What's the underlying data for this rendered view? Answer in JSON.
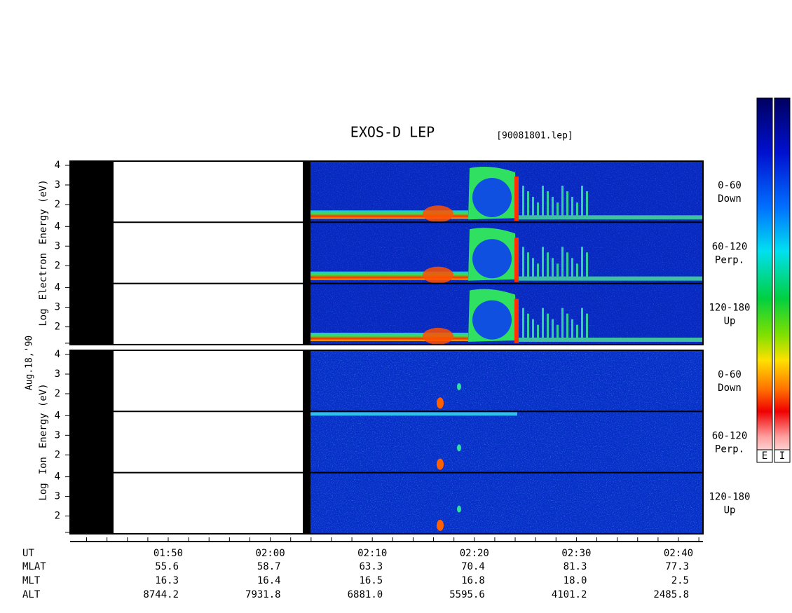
{
  "header": {
    "title": "EXOS-D LEP",
    "file": "[90081801.lep]"
  },
  "date": "Aug.18,'90",
  "panels": [
    {
      "ylabel": [
        "Log",
        "Electron",
        "Energy (eV)"
      ],
      "rows": [
        {
          "ticks": [
            4,
            3,
            2
          ],
          "angle": "0-60",
          "direction": "Down"
        },
        {
          "ticks": [
            4,
            3,
            2
          ],
          "angle": "60-120",
          "direction": "Perp."
        },
        {
          "ticks": [
            4,
            3,
            2
          ],
          "angle": "120-180",
          "direction": "Up"
        }
      ]
    },
    {
      "ylabel": [
        "Log",
        "Ion",
        "Energy (eV)"
      ],
      "rows": [
        {
          "ticks": [
            4,
            3,
            2
          ],
          "angle": "0-60",
          "direction": "Down"
        },
        {
          "ticks": [
            4,
            3,
            2
          ],
          "angle": "60-120",
          "direction": "Perp."
        },
        {
          "ticks": [
            4,
            3,
            2
          ],
          "angle": "120-180",
          "direction": "Up"
        }
      ]
    }
  ],
  "colorbar": {
    "labels": [
      "E",
      "I"
    ]
  },
  "time_axis": {
    "label": "UT",
    "ticks": [
      "01:50",
      "02:00",
      "02:10",
      "02:20",
      "02:30",
      "02:40"
    ]
  },
  "orbit": [
    {
      "label": "MLAT",
      "values": [
        "55.6",
        "58.7",
        "63.3",
        "70.4",
        "81.3",
        "77.3"
      ]
    },
    {
      "label": "MLT",
      "values": [
        "16.3",
        "16.4",
        "16.5",
        "16.8",
        "18.0",
        "2.5"
      ]
    },
    {
      "label": "ALT",
      "values": [
        "8744.2",
        "7931.8",
        "6881.0",
        "5595.6",
        "4101.2",
        "2485.8"
      ]
    }
  ]
}
